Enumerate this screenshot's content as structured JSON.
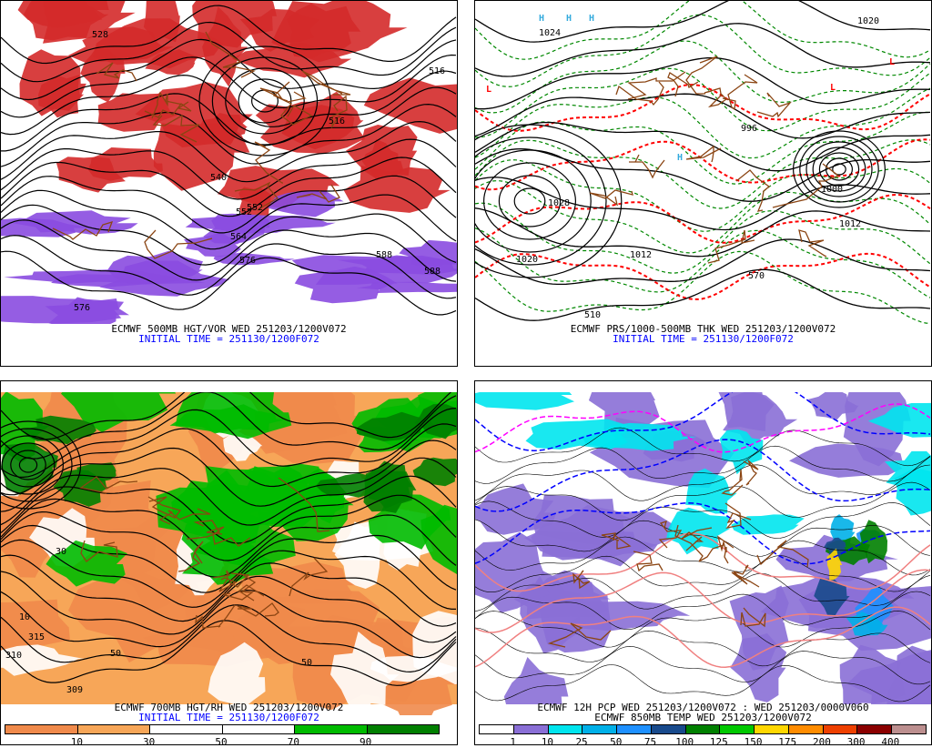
{
  "panels": [
    {
      "id": "tl",
      "caption": "ECMWF 500MB HGT/VOR WED 251203/1200V072",
      "initial_time": "INITIAL TIME = 251130/1200F072",
      "contour_labels": [
        "528",
        "516",
        "552",
        "540",
        "552",
        "564",
        "576",
        "588",
        "576",
        "516",
        "588"
      ],
      "colors": {
        "vorticity_pos": "#d42a2a",
        "vorticity_neg": "#8a4be0",
        "contour": "#000000",
        "borders": "#8b4513"
      }
    },
    {
      "id": "tr",
      "caption": "ECMWF PRS/1000-500MB THK WED 251203/1200V072",
      "initial_time": "INITIAL TIME = 251130/1200F072",
      "contour_labels": [
        "1024",
        "1028",
        "1020",
        "1012",
        "996",
        "1000",
        "1012",
        "570",
        "510",
        "1020"
      ],
      "pressure_centers": [
        "L",
        "L",
        "L",
        "H",
        "H",
        "H",
        "H"
      ],
      "colors": {
        "isobar": "#000000",
        "thickness_warm": "#ff0000",
        "thickness_cold": "#008800",
        "high": "#33aadd",
        "low": "#ff0000"
      }
    },
    {
      "id": "bl",
      "caption": "ECMWF 700MB HGT/RH WED 251203/1200V072",
      "initial_time": "INITIAL TIME = 251130/1200F072",
      "contour_labels": [
        "315",
        "309",
        "310",
        "30",
        "50",
        "50",
        "10"
      ],
      "colorbar": {
        "colors": [
          "#f08a4b",
          "#f7a658",
          "#ffffff",
          "#ffffff",
          "#00bb00",
          "#007f00"
        ],
        "ticks": [
          "10",
          "30",
          "50",
          "70",
          "90"
        ]
      }
    },
    {
      "id": "br",
      "caption": "ECMWF 12H PCP WED 251203/1200V072 : WED 251203/0000V060",
      "caption2": "ECMWF 850MB TEMP WED 251203/1200V072",
      "colorbar": {
        "colors": [
          "#ffffff",
          "#8a6fd6",
          "#00e5ee",
          "#00b0e8",
          "#1e90ff",
          "#184a8c",
          "#008000",
          "#00c800",
          "#ffd700",
          "#ff8c00",
          "#ee4000",
          "#8b0000",
          "#bc8f8f"
        ],
        "ticks": [
          "1",
          "10",
          "25",
          "50",
          "75",
          "100",
          "125",
          "150",
          "175",
          "200",
          "300",
          "400"
        ]
      }
    }
  ]
}
